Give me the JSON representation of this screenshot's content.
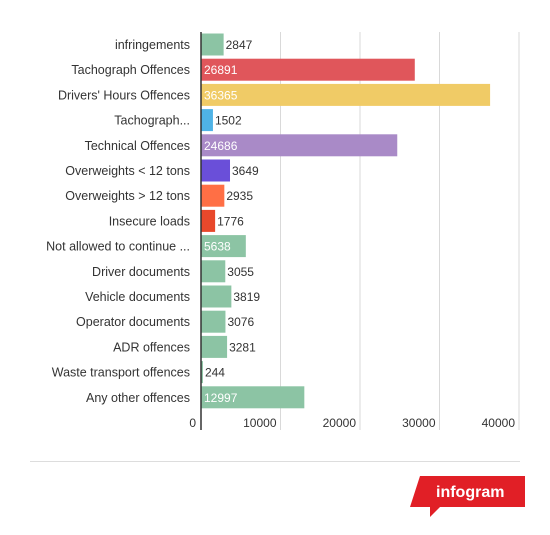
{
  "chart_data": {
    "type": "bar",
    "orientation": "horizontal",
    "categories": [
      "infringements",
      "Tachograph Offences",
      "Drivers' Hours Offences",
      "Tachograph...",
      "Technical Offences",
      "Overweights < 12 tons",
      "Overweights > 12 tons",
      "Insecure loads",
      "Not allowed to continue ...",
      "Driver documents",
      "Vehicle documents",
      "Operator documents",
      "ADR offences",
      "Waste transport offences",
      "Any other offences"
    ],
    "values": [
      2847,
      26891,
      36365,
      1502,
      24686,
      3649,
      2935,
      1776,
      5638,
      3055,
      3819,
      3076,
      3281,
      244,
      12997
    ],
    "value_labels": [
      "2847",
      "26891",
      "36365",
      "1502",
      "24686",
      "3649",
      "2935",
      "1776",
      "5638",
      "3055",
      "3819",
      "3076",
      "3281",
      "244",
      "12997"
    ],
    "colors": [
      "#8cc4a4",
      "#e0565b",
      "#f0cb66",
      "#4fb3e6",
      "#a98ac7",
      "#6a4fd9",
      "#ff6f45",
      "#e8482b",
      "#8cc4a4",
      "#8cc4a4",
      "#8cc4a4",
      "#8cc4a4",
      "#8cc4a4",
      "#8cc4a4",
      "#8cc4a4"
    ],
    "xlim": [
      0,
      40000
    ],
    "ticks": [
      0,
      10000,
      20000,
      30000,
      40000
    ],
    "tick_labels": [
      "0",
      "10000",
      "20000",
      "30000",
      "40000"
    ],
    "grid": true,
    "legend": "none",
    "title": "",
    "xlabel": "",
    "ylabel": ""
  },
  "footer": {
    "brand_label": "infogram",
    "brand_color": "#e11f26"
  }
}
